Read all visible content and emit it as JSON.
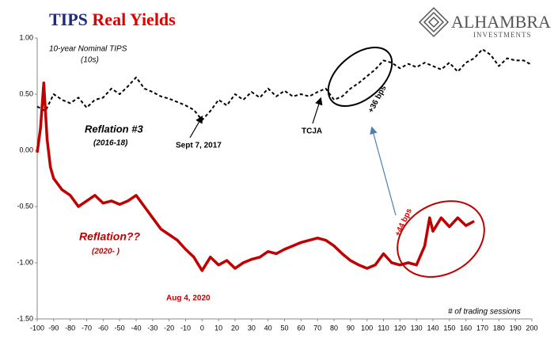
{
  "chart_data": {
    "type": "line",
    "title": [
      "TIPS",
      "Real Yields"
    ],
    "logo": [
      "ALHAMBRA",
      "INVESTMENTS"
    ],
    "xlim": [
      -100,
      200
    ],
    "xticks": [
      -100,
      -90,
      -80,
      -70,
      -60,
      -50,
      -40,
      -30,
      -20,
      -10,
      0,
      10,
      20,
      30,
      40,
      50,
      60,
      70,
      80,
      90,
      100,
      110,
      120,
      130,
      140,
      150,
      160,
      170,
      180,
      190,
      200
    ],
    "ylim": [
      -1.5,
      1.0
    ],
    "yticks": [
      {
        "value": 1.0,
        "label": "1.00"
      },
      {
        "value": 0.5,
        "label": "0.50"
      },
      {
        "value": 0,
        "label": "0.00"
      },
      {
        "value": -0.5,
        "label": "-0.50"
      },
      {
        "value": -1.0,
        "label": "-1.00"
      },
      {
        "value": -1.5,
        "label": "-1.50"
      }
    ],
    "series": [
      {
        "color": "#000000",
        "dashed": true,
        "x": [
          -100,
          -95,
          -90,
          -85,
          -80,
          -75,
          -70,
          -65,
          -60,
          -55,
          -50,
          -45,
          -40,
          -35,
          -30,
          -25,
          -20,
          -15,
          -10,
          -5,
          0,
          5,
          10,
          15,
          20,
          25,
          30,
          35,
          40,
          45,
          50,
          55,
          60,
          65,
          70,
          75,
          80,
          85,
          90,
          95,
          100,
          105,
          110,
          115,
          120,
          125,
          130,
          135,
          140,
          145,
          150,
          155,
          160,
          165,
          170,
          175,
          180,
          185,
          190,
          195,
          200
        ],
        "values": [
          0.39,
          0.35,
          0.5,
          0.45,
          0.42,
          0.47,
          0.38,
          0.45,
          0.47,
          0.55,
          0.5,
          0.57,
          0.65,
          0.55,
          0.52,
          0.48,
          0.46,
          0.43,
          0.4,
          0.36,
          0.27,
          0.35,
          0.45,
          0.4,
          0.5,
          0.45,
          0.52,
          0.47,
          0.55,
          0.48,
          0.53,
          0.48,
          0.5,
          0.48,
          0.52,
          0.55,
          0.45,
          0.48,
          0.55,
          0.6,
          0.66,
          0.72,
          0.8,
          0.78,
          0.73,
          0.77,
          0.74,
          0.78,
          0.75,
          0.72,
          0.78,
          0.7,
          0.78,
          0.82,
          0.9,
          0.85,
          0.75,
          0.82,
          0.8,
          0.8,
          0.76
        ]
      },
      {
        "color": "#c00000",
        "dashed": false,
        "x": [
          -100,
          -98,
          -96,
          -94,
          -92,
          -90,
          -85,
          -80,
          -75,
          -70,
          -65,
          -60,
          -55,
          -50,
          -45,
          -40,
          -35,
          -30,
          -25,
          -20,
          -15,
          -10,
          -5,
          0,
          5,
          10,
          15,
          20,
          25,
          30,
          35,
          40,
          45,
          50,
          55,
          60,
          65,
          70,
          75,
          80,
          85,
          90,
          95,
          100,
          105,
          110,
          115,
          120,
          125,
          130,
          135,
          138,
          140,
          145,
          150,
          155,
          160,
          165
        ],
        "values": [
          -0.02,
          0.2,
          0.6,
          0.1,
          -0.15,
          -0.25,
          -0.35,
          -0.4,
          -0.5,
          -0.45,
          -0.4,
          -0.47,
          -0.45,
          -0.48,
          -0.45,
          -0.4,
          -0.5,
          -0.6,
          -0.7,
          -0.75,
          -0.8,
          -0.88,
          -0.95,
          -1.07,
          -0.95,
          -1.02,
          -0.98,
          -1.05,
          -1.0,
          -0.97,
          -0.95,
          -0.9,
          -0.92,
          -0.88,
          -0.85,
          -0.82,
          -0.8,
          -0.78,
          -0.8,
          -0.85,
          -0.92,
          -0.98,
          -1.02,
          -1.05,
          -1.02,
          -0.92,
          -1.0,
          -1.02,
          -1.0,
          -1.02,
          -0.85,
          -0.6,
          -0.72,
          -0.6,
          -0.68,
          -0.6,
          -0.67,
          -0.63
        ]
      }
    ],
    "annotations": [
      "10-year Nominal TIPS",
      "(10s)",
      "Reflation #3",
      "(2016-18)",
      "Sept 7, 2017",
      "TCJA",
      "+36 bps",
      "Reflation??",
      "(2020- )",
      "Aug 4, 2020",
      "+44 bps",
      "# of trading sessions"
    ]
  }
}
